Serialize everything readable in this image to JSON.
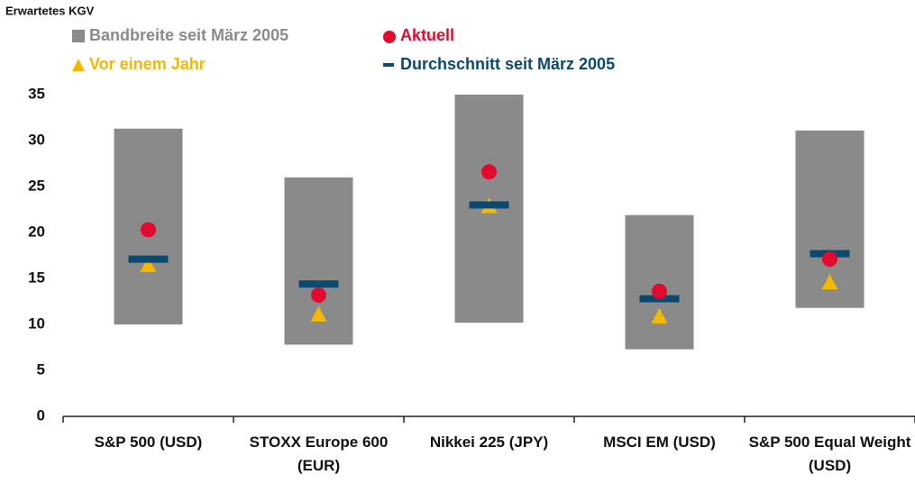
{
  "chart_data": {
    "type": "range-marker",
    "title": "Erwartetes KGV",
    "categories": [
      "S&P 500 (USD)",
      "STOXX Europe 600 (EUR)",
      "Nikkei 225 (JPY)",
      "MSCI EM (USD)",
      "S&P 500 Equal Weight (USD)"
    ],
    "series": [
      {
        "name": "Bandbreite seit März 2005",
        "color": "#8a8a8a",
        "low": [
          10.0,
          7.8,
          10.2,
          7.3,
          11.8
        ],
        "high": [
          31.3,
          26.0,
          35.0,
          21.9,
          31.1
        ]
      },
      {
        "name": "Aktuell",
        "color": "#e30a2f",
        "values": [
          20.3,
          13.2,
          26.6,
          13.6,
          17.1
        ]
      },
      {
        "name": "Vor einem Jahr",
        "color": "#f5b800",
        "values": [
          16.5,
          11.1,
          22.9,
          10.9,
          14.6
        ]
      },
      {
        "name": "Durchschnitt seit März 2005",
        "color": "#0b4a6e",
        "values": [
          17.1,
          14.4,
          23.0,
          12.8,
          17.7
        ]
      }
    ],
    "ylim": [
      0,
      35
    ],
    "yticks": [
      0,
      5,
      10,
      15,
      20,
      25,
      30,
      35
    ]
  }
}
